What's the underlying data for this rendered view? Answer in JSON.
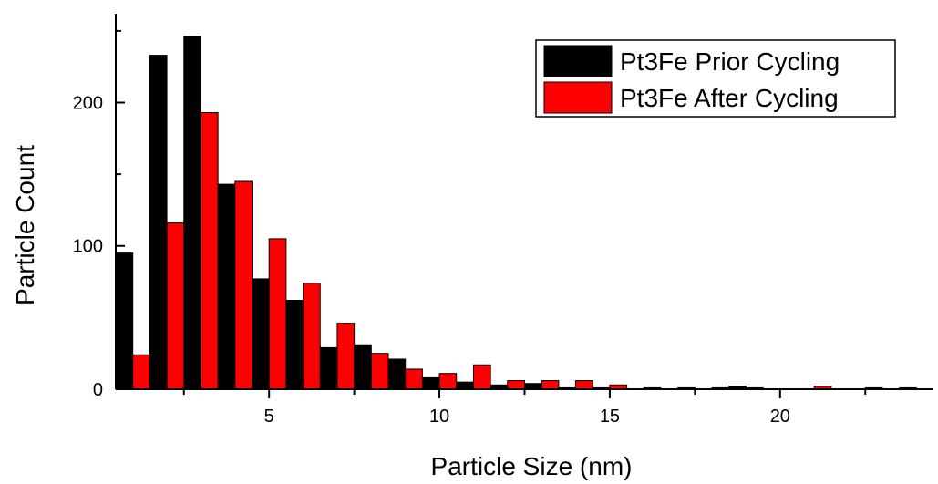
{
  "chart_data": {
    "type": "bar",
    "xlabel": "Particle Size (nm)",
    "ylabel": "Particle Count",
    "x": [
      1,
      2,
      3,
      4,
      5,
      6,
      7,
      8,
      9,
      10,
      11,
      12,
      13,
      14,
      15,
      16,
      17,
      18,
      19,
      20,
      21,
      22,
      23,
      24
    ],
    "xlim": [
      0.5,
      24.5
    ],
    "ylim": [
      0,
      262
    ],
    "x_ticks": [
      5,
      10,
      15,
      20
    ],
    "x_tick_labels": [
      "5",
      "10",
      "15",
      "20"
    ],
    "y_ticks": [
      0,
      100,
      200
    ],
    "y_tick_labels": [
      "0",
      "100",
      "200"
    ],
    "grid": false,
    "legend_position": "top-right",
    "series": [
      {
        "name": "Pt3Fe Prior Cycling",
        "color": "#000000",
        "values": [
          95,
          233,
          246,
          143,
          77,
          62,
          29,
          31,
          21,
          8,
          5,
          3,
          4,
          1,
          1,
          0,
          0,
          0,
          2,
          0,
          0,
          0,
          1,
          1
        ]
      },
      {
        "name": "Pt3Fe After Cycling",
        "color": "#ff0000",
        "values": [
          24,
          116,
          193,
          145,
          105,
          74,
          46,
          25,
          14,
          11,
          17,
          6,
          6,
          6,
          3,
          1,
          1,
          1,
          1,
          0,
          2,
          0,
          0,
          0
        ]
      }
    ]
  }
}
